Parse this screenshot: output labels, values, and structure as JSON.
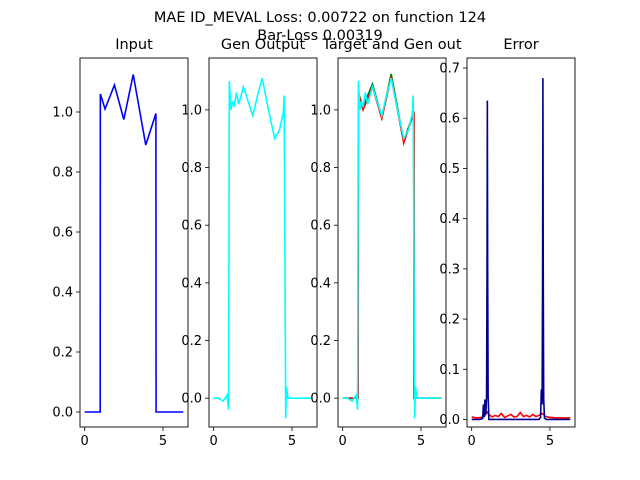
{
  "figure": {
    "title_line1": "MAE ID_MEVAL Loss: 0.00722 on function 124",
    "title_line2": "Bar-Loss 0.00319"
  },
  "chart_data": [
    {
      "type": "line",
      "title": "Input",
      "xlim": [
        -0.3,
        6.6
      ],
      "ylim": [
        -0.05,
        1.18
      ],
      "xticks": [
        0,
        5
      ],
      "yticks": [
        0.0,
        0.2,
        0.4,
        0.6,
        0.8,
        1.0
      ],
      "ytick_format": 1,
      "series": [
        {
          "color": "#0000ff",
          "x": [
            0,
            0.99,
            1.0,
            1.3,
            1.9,
            2.5,
            3.1,
            3.9,
            4.55,
            4.56,
            6.3
          ],
          "y": [
            0,
            0,
            1.06,
            1.01,
            1.09,
            0.975,
            1.125,
            0.89,
            0.995,
            0,
            0
          ]
        }
      ]
    },
    {
      "type": "line",
      "title": "Gen Output",
      "xlim": [
        -0.3,
        6.6
      ],
      "ylim": [
        -0.1,
        1.18
      ],
      "xticks": [
        0,
        5
      ],
      "yticks": [
        0.0,
        0.2,
        0.4,
        0.6,
        0.8,
        1.0
      ],
      "ytick_format": 1,
      "series": [
        {
          "color": "#00ffff",
          "x": [
            0,
            0.3,
            0.6,
            0.85,
            0.95,
            1.0,
            1.05,
            1.1,
            1.2,
            1.3,
            1.45,
            1.6,
            1.9,
            2.2,
            2.5,
            2.8,
            3.1,
            3.5,
            3.9,
            4.2,
            4.45,
            4.5,
            4.55,
            4.6,
            4.65,
            4.75,
            5.0,
            5.5,
            6.3
          ],
          "y": [
            0,
            0.0,
            -0.01,
            0.01,
            -0.04,
            1.1,
            1.05,
            1.0,
            1.03,
            1.01,
            1.06,
            1.02,
            1.08,
            1.03,
            0.98,
            1.05,
            1.11,
            1.0,
            0.9,
            0.93,
            0.99,
            1.05,
            0.5,
            -0.07,
            0.04,
            0.0,
            0.0,
            0.0,
            0.0
          ]
        }
      ]
    },
    {
      "type": "line",
      "title": "Target and Gen out",
      "xlim": [
        -0.3,
        6.6
      ],
      "ylim": [
        -0.1,
        1.18
      ],
      "xticks": [
        0,
        5
      ],
      "yticks": [
        0.0,
        0.2,
        0.4,
        0.6,
        0.8,
        1.0
      ],
      "ytick_format": 1,
      "series": [
        {
          "color": "#008000",
          "x": [
            0,
            0.99,
            1.0,
            1.3,
            1.9,
            2.5,
            3.1,
            3.9,
            4.55,
            4.56,
            6.3
          ],
          "y": [
            0,
            0,
            1.06,
            1.01,
            1.09,
            0.975,
            1.125,
            0.89,
            0.995,
            0,
            0
          ]
        },
        {
          "color": "#ff0000",
          "x": [
            0,
            0.99,
            1.0,
            1.3,
            1.9,
            2.5,
            3.1,
            3.9,
            4.55,
            4.56,
            6.3
          ],
          "y": [
            0,
            0,
            1.06,
            1.0,
            1.08,
            0.97,
            1.115,
            0.885,
            0.99,
            0,
            0
          ]
        },
        {
          "color": "#00ffff",
          "x": [
            0,
            0.3,
            0.6,
            0.85,
            0.95,
            1.0,
            1.05,
            1.1,
            1.2,
            1.3,
            1.45,
            1.6,
            1.9,
            2.2,
            2.5,
            2.8,
            3.1,
            3.5,
            3.9,
            4.2,
            4.45,
            4.5,
            4.55,
            4.6,
            4.65,
            4.75,
            5.0,
            5.5,
            6.3
          ],
          "y": [
            0,
            0.0,
            -0.01,
            0.01,
            -0.04,
            1.1,
            1.05,
            1.0,
            1.03,
            1.01,
            1.06,
            1.02,
            1.08,
            1.03,
            0.98,
            1.05,
            1.11,
            1.0,
            0.9,
            0.93,
            0.99,
            1.05,
            0.5,
            -0.07,
            0.04,
            0.0,
            0.0,
            0.0,
            0.0
          ]
        }
      ]
    },
    {
      "type": "line",
      "title": "Error",
      "xlim": [
        -0.3,
        6.6
      ],
      "ylim": [
        -0.015,
        0.72
      ],
      "xticks": [
        0,
        5
      ],
      "yticks": [
        0.0,
        0.1,
        0.2,
        0.3,
        0.4,
        0.5,
        0.6,
        0.7
      ],
      "ytick_format": 1,
      "series": [
        {
          "color": "#ff0000",
          "x": [
            0,
            0.3,
            0.6,
            0.8,
            1.0,
            1.1,
            1.3,
            1.5,
            1.7,
            1.9,
            2.1,
            2.3,
            2.5,
            2.7,
            2.9,
            3.1,
            3.3,
            3.5,
            3.7,
            3.9,
            4.1,
            4.3,
            4.5,
            4.6,
            4.7,
            5.0,
            5.5,
            6.3
          ],
          "y": [
            0.005,
            0.003,
            0.004,
            0.006,
            0.015,
            0.01,
            0.005,
            0.008,
            0.006,
            0.012,
            0.004,
            0.007,
            0.01,
            0.005,
            0.006,
            0.014,
            0.006,
            0.008,
            0.005,
            0.01,
            0.006,
            0.008,
            0.012,
            0.01,
            0.006,
            0.004,
            0.003,
            0.003
          ]
        },
        {
          "color": "#00008b",
          "x": [
            0,
            0.5,
            0.7,
            0.75,
            0.8,
            0.85,
            0.9,
            0.95,
            0.98,
            1.0,
            1.02,
            1.05,
            1.1,
            1.3,
            4.3,
            4.4,
            4.45,
            4.5,
            4.53,
            4.55,
            4.57,
            4.6,
            4.65,
            4.75,
            5.0,
            6.3
          ],
          "y": [
            0.0,
            0.0,
            0.002,
            0.03,
            0.005,
            0.04,
            0.01,
            0.045,
            0.3,
            0.635,
            0.3,
            0.045,
            0.0,
            0.0,
            0.0,
            0.004,
            0.06,
            0.03,
            0.3,
            0.68,
            0.3,
            0.04,
            0.003,
            0.0,
            0.0,
            0.0
          ]
        }
      ]
    }
  ]
}
